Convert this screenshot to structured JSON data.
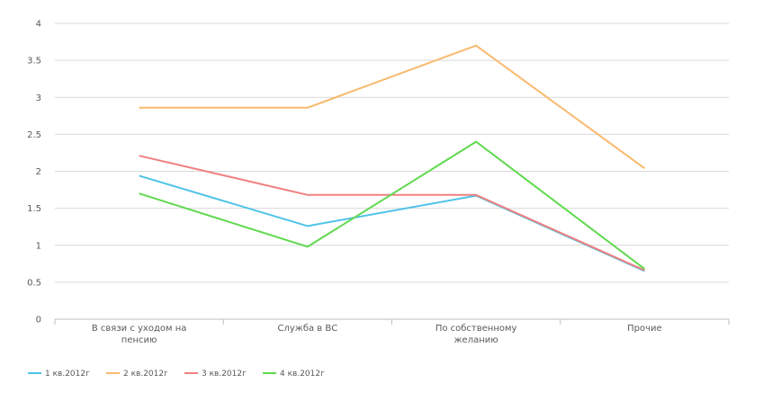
{
  "chart_data": {
    "type": "line",
    "categories": [
      [
        "В связи с уходом на",
        "пенсию"
      ],
      [
        "Служба  в ВС"
      ],
      [
        "По собственному",
        "желанию"
      ],
      [
        "Прочие"
      ]
    ],
    "ylim": [
      0,
      4
    ],
    "yticks": [
      "0",
      "0.5",
      "1",
      "1.5",
      "2",
      "2.5",
      "3",
      "3.5",
      "4"
    ],
    "ytick_values": [
      0,
      0.5,
      1,
      1.5,
      2,
      2.5,
      3,
      3.5,
      4
    ],
    "grid": true,
    "legend_position": "bottom-left",
    "series": [
      {
        "name": "1 кв.2012г",
        "color": "#4fc3e8",
        "values": [
          1.94,
          1.26,
          1.67,
          0.65
        ]
      },
      {
        "name": "2 кв.2012г",
        "color": "#f9b96e",
        "values": [
          2.86,
          2.86,
          3.7,
          2.04
        ]
      },
      {
        "name": "3 кв.2012г",
        "color": "#f08080",
        "values": [
          2.21,
          1.68,
          1.68,
          0.66
        ]
      },
      {
        "name": "4 кв.2012г",
        "color": "#5fd94e",
        "values": [
          1.7,
          0.98,
          2.4,
          0.68
        ]
      }
    ]
  }
}
